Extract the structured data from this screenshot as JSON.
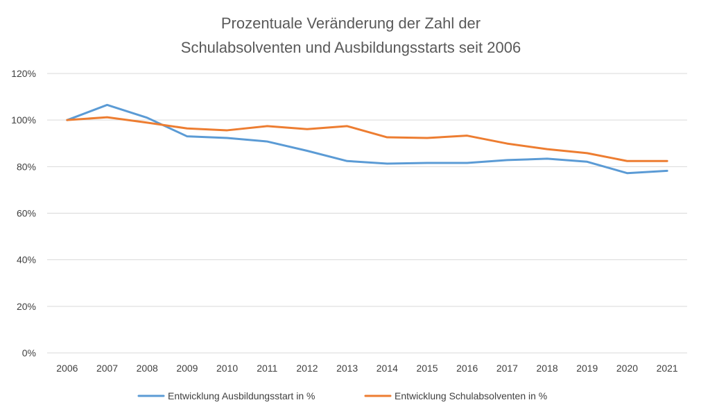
{
  "chart_data": {
    "type": "line",
    "title_lines": [
      "Prozentuale Veränderung der Zahl der",
      "Schulabsolventen und Ausbildungsstarts seit 2006"
    ],
    "x": [
      "2006",
      "2007",
      "2008",
      "2009",
      "2010",
      "2011",
      "2012",
      "2013",
      "2014",
      "2015",
      "2016",
      "2017",
      "2018",
      "2019",
      "2020",
      "2021"
    ],
    "ylim": [
      0,
      120
    ],
    "yticks": [
      0,
      20,
      40,
      60,
      80,
      100,
      120
    ],
    "ytick_labels": [
      "0%",
      "20%",
      "40%",
      "60%",
      "80%",
      "100%",
      "120%"
    ],
    "grid": true,
    "legend_position": "bottom",
    "series": [
      {
        "name": "Entwicklung Ausbildungsstart in %",
        "color": "#5b9bd5",
        "values": [
          100,
          106.5,
          101,
          93,
          92.3,
          90.8,
          86.8,
          82.4,
          81.3,
          81.6,
          81.6,
          82.8,
          83.4,
          82.1,
          77.2,
          78.2
        ]
      },
      {
        "name": "Entwicklung Schulabsolventen in %",
        "color": "#ed7d31",
        "values": [
          100,
          101.2,
          98.9,
          96.4,
          95.6,
          97.4,
          96.1,
          97.4,
          92.6,
          92.3,
          93.3,
          89.9,
          87.5,
          85.8,
          82.4,
          82.4
        ]
      }
    ]
  }
}
